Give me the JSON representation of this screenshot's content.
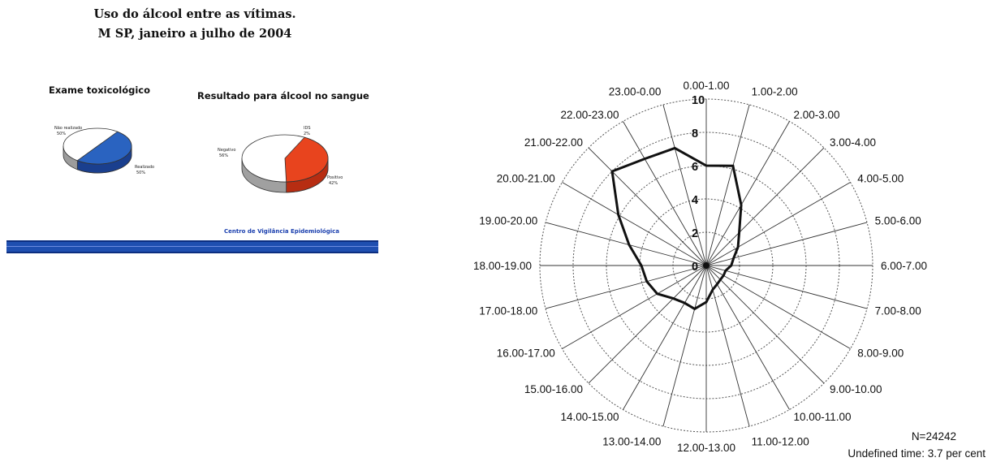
{
  "left": {
    "title_line1": "Uso do álcool entre as vítimas.",
    "title_line2": "M SP, janeiro a julho de 2004",
    "pie1": {
      "title": "Exame toxicológico",
      "label_a": "Não realizado",
      "label_a_pct": "50%",
      "label_b": "Realizado",
      "label_b_pct": "50%",
      "fraction_b": 0.5,
      "color_a": "#ffffff",
      "color_b": "#2a63c0"
    },
    "pie2": {
      "title": "Resultado para álcool no sangue",
      "label_a": "Negativo",
      "label_a_pct": "56%",
      "label_b": "Positivo",
      "label_b_pct": "42%",
      "label_c": "IDS",
      "label_c_pct": "2%",
      "fraction_b": 0.42,
      "color_a": "#ffffff",
      "color_b": "#e8441e"
    },
    "source": "Centro de Vigilância Epidemiológica",
    "bar_color": "#1f4fb0"
  },
  "chart_data": {
    "type": "radar",
    "categories": [
      "0.00-1.00",
      "1.00-2.00",
      "2.00-3.00",
      "3.00-4.00",
      "4.00-5.00",
      "5.00-6.00",
      "6.00-7.00",
      "7.00-8.00",
      "8.00-9.00",
      "9.00-10.00",
      "10.00-11.00",
      "11.00-12.00",
      "12.00-13.00",
      "13.00-14.00",
      "14.00-15.00",
      "15.00-16.00",
      "16.00-17.00",
      "17.00-18.00",
      "18.00-19.00",
      "19.00-20.00",
      "20.00-21.00",
      "21.00-22.00",
      "22.00-23.00",
      "23.00-0.00"
    ],
    "values": [
      6.0,
      6.2,
      4.2,
      2.8,
      2.2,
      1.7,
      1.5,
      1.2,
      1.2,
      1.2,
      1.3,
      1.5,
      2.2,
      2.7,
      2.6,
      2.8,
      3.4,
      3.7,
      3.9,
      4.8,
      6.1,
      8.0,
      7.4,
      7.3
    ],
    "rlim": [
      0,
      10
    ],
    "r_ticks": [
      "0",
      "2",
      "4",
      "6",
      "8",
      "10"
    ],
    "grid": true,
    "line_color": "#111111",
    "notes": [
      "N=24242",
      "Undefined time: 3.7 per cent"
    ]
  }
}
